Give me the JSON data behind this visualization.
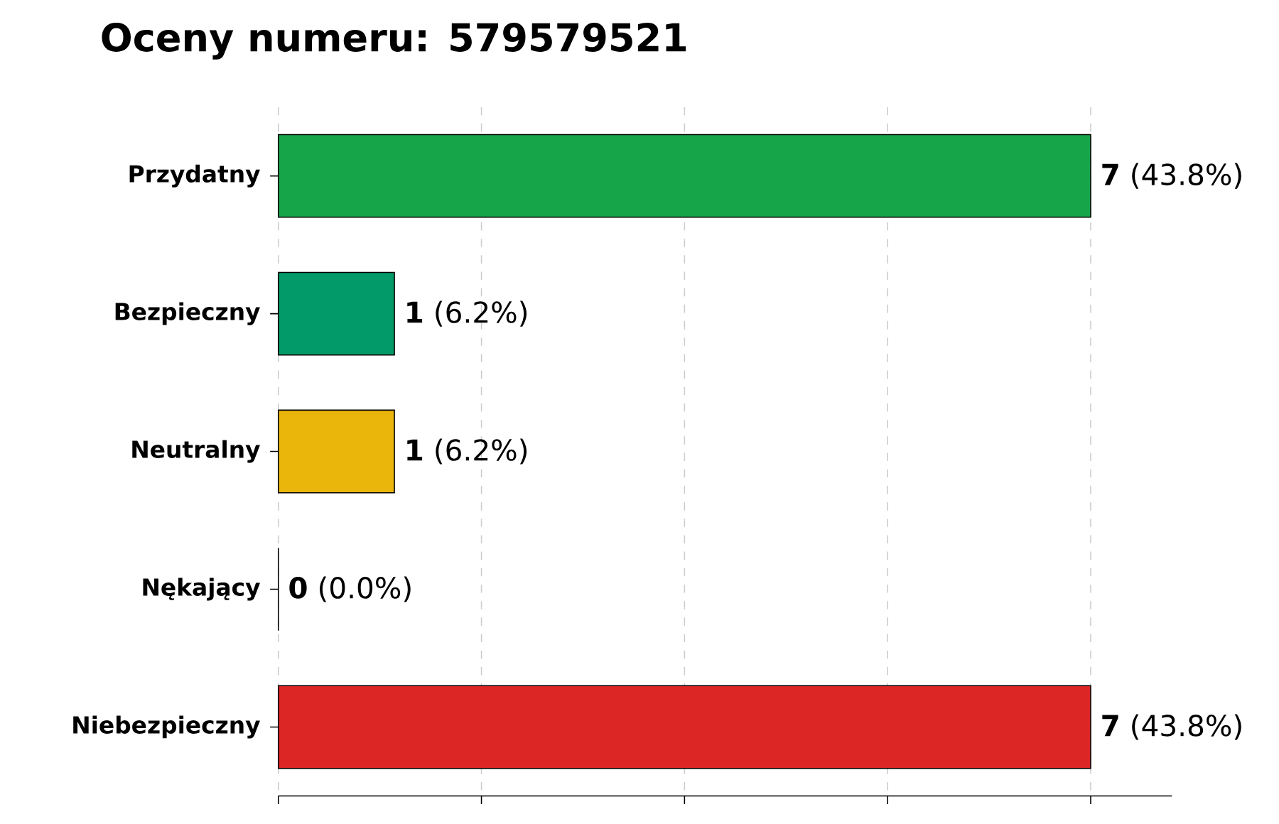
{
  "chart_data": {
    "type": "bar",
    "orientation": "horizontal",
    "title": "Oceny numeru: 579579521",
    "categories": [
      "Przydatny",
      "Bezpieczny",
      "Neutralny",
      "Nękający",
      "Niebezpieczny"
    ],
    "values": [
      7,
      1,
      1,
      0,
      7
    ],
    "colors": [
      "#17a54a",
      "#039a6a",
      "#eab60c",
      "#7f7f7f",
      "#dc2626"
    ],
    "value_labels": [
      "**7** (43.8%)",
      "**1** (6.2%)",
      "**1** (6.2%)",
      "**0** (0.0%)",
      "**7** (43.8%)"
    ],
    "xlim": [
      0,
      7.7
    ],
    "xticks": [
      {
        "value": 0,
        "label": null
      },
      {
        "value": 1.75,
        "label": null
      },
      {
        "value": 3.5,
        "label": null
      },
      {
        "value": 5.25,
        "label": null
      },
      {
        "value": 7,
        "label": null
      }
    ],
    "tick_labels": "y",
    "grid": "x"
  }
}
